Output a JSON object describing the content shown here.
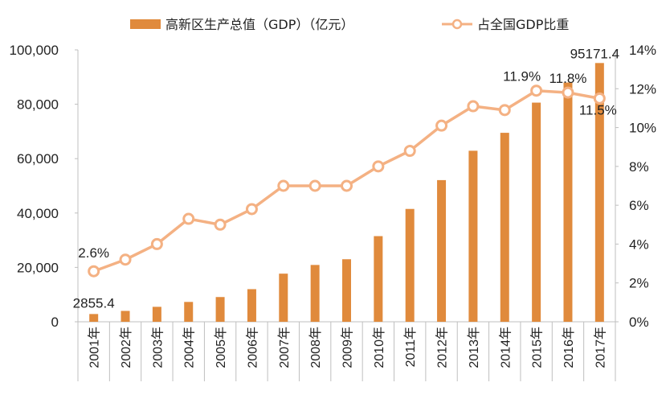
{
  "colors": {
    "bar": "#E08A3C",
    "line": "#F4B183",
    "marker_fill": "#ffffff",
    "axis": "#bfbfbf",
    "text": "#222222"
  },
  "legend": {
    "bar_label": "高新区生产总值（GDP）（亿元）",
    "line_label": "占全国GDP比重"
  },
  "chart_data": {
    "type": "bar",
    "categories": [
      "2001年",
      "2002年",
      "2003年",
      "2004年",
      "2005年",
      "2006年",
      "2007年",
      "2008年",
      "2009年",
      "2010年",
      "2011年",
      "2012年",
      "2013年",
      "2014年",
      "2015年",
      "2016年",
      "2017年"
    ],
    "series": [
      {
        "name": "高新区生产总值（GDP）（亿元）",
        "type": "bar",
        "axis": "left",
        "values": [
          2855.4,
          4000,
          5500,
          7300,
          9100,
          12000,
          17700,
          20900,
          23000,
          31500,
          41500,
          52100,
          62900,
          69500,
          80600,
          88000,
          95171.4
        ]
      },
      {
        "name": "占全国GDP比重",
        "type": "line",
        "axis": "right",
        "values": [
          2.6,
          3.2,
          4.0,
          5.3,
          5.0,
          5.8,
          7.0,
          7.0,
          7.0,
          8.0,
          8.8,
          10.1,
          11.1,
          10.9,
          11.9,
          11.8,
          11.5
        ]
      }
    ],
    "left_axis": {
      "ylim": [
        0,
        100000
      ],
      "ticks": [
        0,
        20000,
        40000,
        60000,
        80000,
        100000
      ],
      "tick_labels": [
        "0",
        "20,000",
        "40,000",
        "60,000",
        "80,000",
        "100,000"
      ]
    },
    "right_axis": {
      "ylim": [
        0,
        14
      ],
      "ticks": [
        0,
        2,
        4,
        6,
        8,
        10,
        12,
        14
      ],
      "tick_labels": [
        "0%",
        "2%",
        "4%",
        "6%",
        "8%",
        "10%",
        "12%",
        "14%"
      ]
    },
    "data_labels": [
      {
        "series": 0,
        "index": 0,
        "text": "2855.4"
      },
      {
        "series": 0,
        "index": 16,
        "text": "95171.4"
      },
      {
        "series": 1,
        "index": 0,
        "text": "2.6%"
      },
      {
        "series": 1,
        "index": 14,
        "text": "11.9%"
      },
      {
        "series": 1,
        "index": 15,
        "text": "11.8%"
      },
      {
        "series": 1,
        "index": 16,
        "text": "11.5%"
      }
    ],
    "legend_position": "top",
    "grid": false
  }
}
